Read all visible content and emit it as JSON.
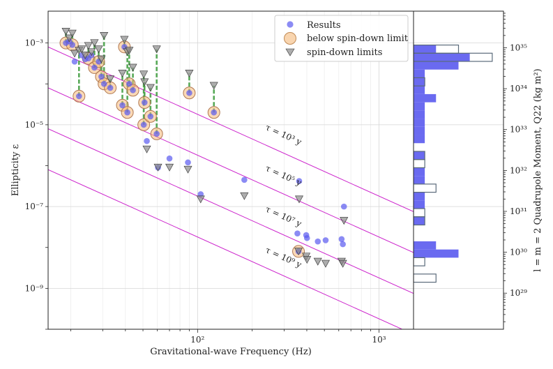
{
  "chart_data": {
    "type": "scatter",
    "xlabel": "Gravitational-wave Frequency (Hz)",
    "ylabel": "Ellipticity ε",
    "ylabel_right": "l = m = 2 Quadrupole Moment, Q22 (kg m²)",
    "xscale": "log",
    "yscale": "log",
    "xlim": [
      15,
      1550
    ],
    "ylim": [
      1e-10,
      0.006
    ],
    "x_ticks": [
      {
        "value": 100,
        "label": "10²"
      },
      {
        "value": 1000,
        "label": "10³"
      }
    ],
    "y_ticks": [
      {
        "value": 0.001,
        "label": "10⁻³"
      },
      {
        "value": 1e-05,
        "label": "10⁻⁵"
      },
      {
        "value": 1e-07,
        "label": "10⁻⁷"
      },
      {
        "value": 1e-09,
        "label": "10⁻⁹"
      }
    ],
    "q_ticks": [
      {
        "value": 1e+35,
        "label": "10³⁵"
      },
      {
        "value": 1e+34,
        "label": "10³⁴"
      },
      {
        "value": 1e+33,
        "label": "10³³"
      },
      {
        "value": 1e+32,
        "label": "10³²"
      },
      {
        "value": 1e+31,
        "label": "10³¹"
      },
      {
        "value": 1e+30,
        "label": "10³⁰"
      },
      {
        "value": 1e+29,
        "label": "10²⁹"
      }
    ],
    "q_per_epsilon": 1.31e+38,
    "legend": [
      "Results",
      "below spin-down limit",
      "spin-down limits"
    ],
    "legend_position": "top-right",
    "colors": {
      "results": "#5a5af0",
      "below": "#f5b97a",
      "spindown": "#8a8a8a",
      "connector": "#3a9a3a",
      "tau_lines": "#cc22cc",
      "hist_fill": "#6a6af0",
      "hist_outline": "#5a6a7a"
    },
    "tau_lines": [
      {
        "label": "τ = 10³ y",
        "eps_at_15hz": 0.0008
      },
      {
        "label": "τ = 10⁵ y",
        "eps_at_15hz": 8e-05
      },
      {
        "label": "τ = 10⁷ y",
        "eps_at_15hz": 8e-06
      },
      {
        "label": "τ = 10⁹ y",
        "eps_at_15hz": 8e-07
      }
    ],
    "results": [
      [
        18.8,
        0.001
      ],
      [
        19.6,
        0.0011
      ],
      [
        20.4,
        0.0009
      ],
      [
        21.0,
        0.00035
      ],
      [
        22.2,
        5e-05
      ],
      [
        23.0,
        0.0005
      ],
      [
        24.0,
        0.0004
      ],
      [
        25.0,
        0.00042
      ],
      [
        26.0,
        0.0005
      ],
      [
        27.0,
        0.00025
      ],
      [
        28.5,
        0.00035
      ],
      [
        29.5,
        0.00015
      ],
      [
        30.5,
        0.0001
      ],
      [
        33.0,
        8e-05
      ],
      [
        38.5,
        3e-05
      ],
      [
        39.5,
        0.0008
      ],
      [
        41.0,
        2e-05
      ],
      [
        42.0,
        0.0001
      ],
      [
        44.0,
        7e-05
      ],
      [
        50.5,
        1e-05
      ],
      [
        51.0,
        3.5e-05
      ],
      [
        52.5,
        4e-06
      ],
      [
        55.0,
        1.6e-05
      ],
      [
        59.5,
        6e-06
      ],
      [
        60.5,
        9e-07
      ],
      [
        70.0,
        1.5e-06
      ],
      [
        88.5,
        1.2e-06
      ],
      [
        104.0,
        2e-07
      ],
      [
        90.0,
        6e-05
      ],
      [
        123.0,
        2e-05
      ],
      [
        181.0,
        4.5e-07
      ],
      [
        355.0,
        2.2e-08
      ],
      [
        363.0,
        4.2e-07
      ],
      [
        397.0,
        2e-08
      ],
      [
        401.0,
        1.7e-08
      ],
      [
        460.0,
        1.4e-08
      ],
      [
        508.0,
        1.5e-08
      ],
      [
        360.0,
        8e-09
      ],
      [
        622.0,
        1.6e-08
      ],
      [
        632.0,
        1.2e-08
      ],
      [
        641.0,
        1e-07
      ]
    ],
    "below_spindown": [
      [
        18.8,
        0.001
      ],
      [
        20.4,
        0.0009
      ],
      [
        22.2,
        5e-05
      ],
      [
        25.0,
        0.00042
      ],
      [
        27.0,
        0.00025
      ],
      [
        28.5,
        0.00035
      ],
      [
        29.5,
        0.00015
      ],
      [
        30.5,
        0.0001
      ],
      [
        33.0,
        8e-05
      ],
      [
        38.5,
        3e-05
      ],
      [
        39.5,
        0.0008
      ],
      [
        41.0,
        2e-05
      ],
      [
        42.0,
        0.0001
      ],
      [
        44.0,
        7e-05
      ],
      [
        50.5,
        1e-05
      ],
      [
        51.0,
        3.5e-05
      ],
      [
        55.0,
        1.6e-05
      ],
      [
        59.5,
        6e-06
      ],
      [
        90.0,
        6e-05
      ],
      [
        123.0,
        2e-05
      ],
      [
        360.0,
        8e-09
      ]
    ],
    "spindown_limits": [
      [
        18.8,
        0.0019
      ],
      [
        19.6,
        0.0013
      ],
      [
        20.4,
        0.0017
      ],
      [
        21.0,
        0.00055
      ],
      [
        22.2,
        0.00065
      ],
      [
        23.0,
        0.0007
      ],
      [
        24.0,
        0.0005
      ],
      [
        25.0,
        0.00085
      ],
      [
        26.0,
        0.0006
      ],
      [
        27.0,
        0.001
      ],
      [
        28.5,
        0.0007
      ],
      [
        29.5,
        0.0004
      ],
      [
        30.5,
        0.0015
      ],
      [
        33.0,
        0.00013
      ],
      [
        38.5,
        0.00018
      ],
      [
        39.5,
        0.0012
      ],
      [
        41.0,
        0.0006
      ],
      [
        42.0,
        0.00065
      ],
      [
        44.0,
        0.00025
      ],
      [
        50.5,
        0.00017
      ],
      [
        51.0,
        0.00011
      ],
      [
        52.5,
        2.5e-06
      ],
      [
        55.0,
        8e-05
      ],
      [
        59.5,
        0.0007
      ],
      [
        60.5,
        9e-07
      ],
      [
        70.0,
        9e-07
      ],
      [
        88.5,
        8e-07
      ],
      [
        104.0,
        1.5e-07
      ],
      [
        90.0,
        0.00018
      ],
      [
        123.0,
        9e-05
      ],
      [
        181.0,
        1.8e-07
      ],
      [
        363.0,
        1.5e-07
      ],
      [
        397.0,
        6e-09
      ],
      [
        401.0,
        5e-09
      ],
      [
        460.0,
        4.5e-09
      ],
      [
        508.0,
        4e-09
      ],
      [
        360.0,
        8e-09
      ],
      [
        622.0,
        4.5e-09
      ],
      [
        632.0,
        4e-09
      ],
      [
        641.0,
        4.5e-08
      ]
    ],
    "histogram": {
      "log10_bin_edges": [
        -9.45,
        -9.25,
        -9.05,
        -8.85,
        -8.65,
        -8.45,
        -8.25,
        -8.05,
        -7.85,
        -7.65,
        -7.45,
        -7.25,
        -7.05,
        -6.85,
        -6.65,
        -6.45,
        -6.25,
        -6.05,
        -5.85,
        -5.65,
        -5.45,
        -5.25,
        -5.05,
        -4.85,
        -4.65,
        -4.45,
        -4.25,
        -4.05,
        -3.85,
        -3.65,
        -3.45,
        -3.25,
        -3.05,
        -2.85
      ],
      "results_counts": [
        0,
        0,
        0,
        0,
        0,
        0,
        4,
        2,
        0,
        0,
        1,
        0,
        1,
        1,
        0,
        1,
        1,
        0,
        1,
        0,
        1,
        1,
        1,
        1,
        1,
        2,
        1,
        1,
        1,
        4,
        5,
        2,
        0
      ],
      "spindown_counts": [
        0,
        0,
        0,
        2,
        0,
        1,
        0,
        0,
        0,
        0,
        1,
        1,
        0,
        0,
        2,
        0,
        0,
        1,
        1,
        0,
        0,
        0,
        0,
        0,
        0,
        0,
        0,
        1,
        0,
        0,
        7,
        4,
        0
      ]
    }
  }
}
